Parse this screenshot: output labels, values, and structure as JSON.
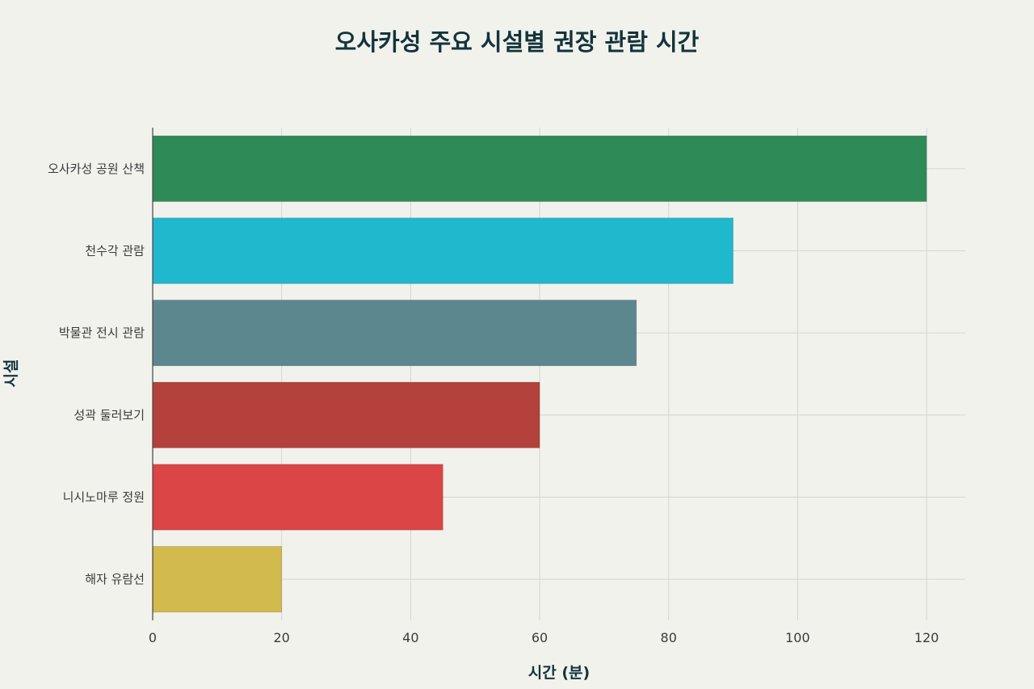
{
  "chart_data": {
    "type": "bar",
    "orientation": "horizontal",
    "title": "오사카성 주요 시설별 권장 관람 시간",
    "xlabel": "시간 (분)",
    "ylabel": "시설",
    "categories": [
      "오사카성 공원 산책",
      "천수각 관람",
      "박물관 전시 관람",
      "성곽 둘러보기",
      "니시노마루 정원",
      "해자 유람선"
    ],
    "values": [
      120,
      90,
      75,
      60,
      45,
      20
    ],
    "colors": [
      "#2e8b57",
      "#20b8cd",
      "#5d878f",
      "#b4413c",
      "#db4545",
      "#d2ba4c"
    ],
    "xlim": [
      0,
      126
    ],
    "xticks": [
      0,
      20,
      40,
      60,
      80,
      100,
      120
    ],
    "grid": true,
    "legend": false
  }
}
